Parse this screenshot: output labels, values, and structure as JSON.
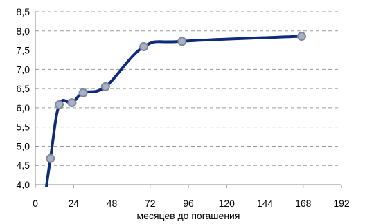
{
  "chart_data": {
    "type": "line",
    "xlabel": "месяцев до погашения",
    "ylabel": "",
    "xlim": [
      0,
      192
    ],
    "ylim": [
      4.0,
      8.5
    ],
    "xticks": [
      0,
      24,
      48,
      72,
      96,
      120,
      144,
      168,
      192
    ],
    "xtick_labels": [
      "0",
      "24",
      "48",
      "72",
      "96",
      "120",
      "144",
      "168",
      "192"
    ],
    "yticks": [
      4.0,
      4.5,
      5.0,
      5.5,
      6.0,
      6.5,
      7.0,
      7.5,
      8.0,
      8.5
    ],
    "ytick_labels": [
      "4,0",
      "4,5",
      "5,0",
      "5,5",
      "6,0",
      "6,5",
      "7,0",
      "7,5",
      "8,0",
      "8,5"
    ],
    "grid": "horizontal-dashed",
    "legend": "none",
    "series": [
      {
        "color": "#0d2b7a",
        "marker_color": "#a8b0c4",
        "x": [
          9.5,
          15,
          23,
          30,
          44,
          68,
          92,
          167
        ],
        "y": [
          4.68,
          6.08,
          6.13,
          6.39,
          6.55,
          7.59,
          7.73,
          7.86
        ],
        "curve_extends_below_axis_from_x": 7
      }
    ]
  }
}
